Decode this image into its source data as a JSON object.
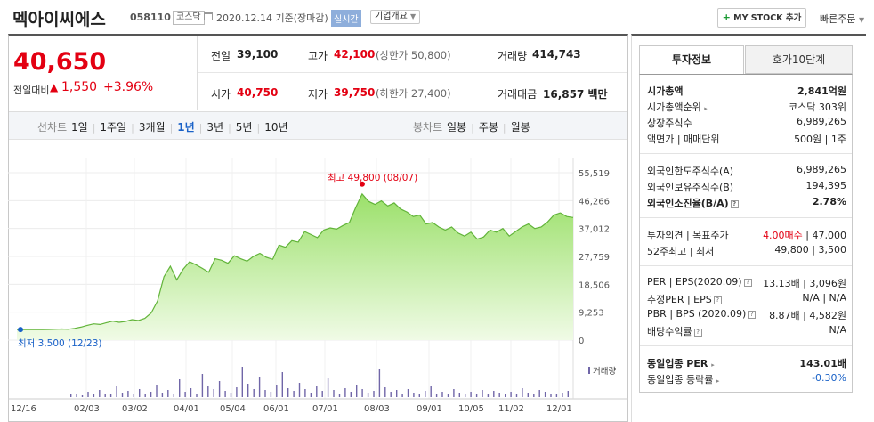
{
  "header": {
    "company": "멕아이씨에스",
    "code": "058110",
    "market": "코스닥",
    "date_text": "2020.12.14 기준(장마감)",
    "realtime": "실시간",
    "company_info": "기업개요",
    "my_stock": "MY STOCK 추가",
    "quick_order": "빠른주문"
  },
  "price": {
    "current": "40,650",
    "change_label": "전일대비",
    "change": "1,550",
    "change_pct": "+3.96%"
  },
  "stats": {
    "prev_label": "전일",
    "prev": "39,100",
    "high_label": "고가",
    "high": "42,100",
    "upper_limit": "(상한가 50,800)",
    "volume_label": "거래량",
    "volume": "414,743",
    "open_label": "시가",
    "open": "40,750",
    "low_label": "저가",
    "low": "39,750",
    "lower_limit": "(하한가 27,400)",
    "amount_label": "거래대금",
    "amount": "16,857 백만"
  },
  "chart_tabs": {
    "line_label": "선차트",
    "periods": [
      "1일",
      "1주일",
      "3개월",
      "1년",
      "3년",
      "5년",
      "10년"
    ],
    "active": "1년",
    "candle_label": "봉차트",
    "candles": [
      "일봉",
      "주봉",
      "월봉"
    ]
  },
  "chart_data": {
    "type": "area",
    "y_ticks": [
      "55,519",
      "46,266",
      "37,012",
      "27,759",
      "18,506",
      "9,253",
      "0"
    ],
    "ylim": [
      0,
      55519
    ],
    "x_ticks": [
      "12/16",
      "02/03",
      "03/02",
      "04/01",
      "05/04",
      "06/01",
      "07/01",
      "08/03",
      "09/01",
      "10/05",
      "11/02",
      "12/01"
    ],
    "max_label": "최고 49,800 (08/07)",
    "min_label": "최저 3,500 (12/23)",
    "volume_legend": "거래량",
    "values": [
      3500,
      3500,
      3500,
      3500,
      3520,
      3550,
      3600,
      3700,
      3600,
      3900,
      4300,
      4900,
      5400,
      5200,
      5800,
      6300,
      5900,
      6200,
      6800,
      6500,
      7200,
      9000,
      13000,
      21000,
      24500,
      20000,
      23500,
      26000,
      25000,
      23800,
      22500,
      27000,
      26500,
      25500,
      28000,
      27000,
      26200,
      27800,
      28800,
      27500,
      26800,
      31500,
      30800,
      33000,
      32500,
      36000,
      35000,
      34000,
      36500,
      37200,
      36800,
      38000,
      39000,
      44000,
      48500,
      46000,
      45000,
      46200,
      44500,
      45500,
      43500,
      42500,
      41000,
      41500,
      38500,
      39000,
      37500,
      36500,
      37500,
      35500,
      34500,
      35800,
      33500,
      34200,
      36500,
      35800,
      37000,
      34500,
      36000,
      37500,
      38500,
      37000,
      37500,
      39200,
      41500,
      42200,
      41000,
      40650
    ]
  },
  "side_tabs": {
    "invest": "투자정보",
    "hoga": "호가10단계"
  },
  "side": {
    "mcap_label": "시가총액",
    "mcap": "2,841억원",
    "rank_label": "시가총액순위",
    "rank": "코스닥 303위",
    "shares_label": "상장주식수",
    "shares": "6,989,265",
    "par_label": "액면가 | 매매단위",
    "par": "500원 | 1주",
    "f_limit_label": "외국인한도주식수(A)",
    "f_limit": "6,989,265",
    "f_hold_label": "외국인보유주식수(B)",
    "f_hold": "194,395",
    "f_rate_label": "외국인소진율(B/A)",
    "f_rate": "2.78%",
    "opinion_label": "투자의견 | 목표주가",
    "opinion": "4.00매수",
    "target": "| 47,000",
    "w52_label": "52주최고 | 최저",
    "w52": "49,800 | 3,500",
    "per_label": "PER | EPS(2020.09)",
    "per": "13.13배 | 3,096원",
    "eper_label": "추정PER | EPS",
    "eper": "N/A | N/A",
    "pbr_label": "PBR | BPS (2020.09)",
    "pbr": "8.87배 | 4,582원",
    "div_label": "배당수익률",
    "div": "N/A",
    "ind_per_label": "동일업종 PER",
    "ind_per": "143.01배",
    "ind_rate_label": "동일업종 등락률",
    "ind_rate": "-0.30%"
  }
}
